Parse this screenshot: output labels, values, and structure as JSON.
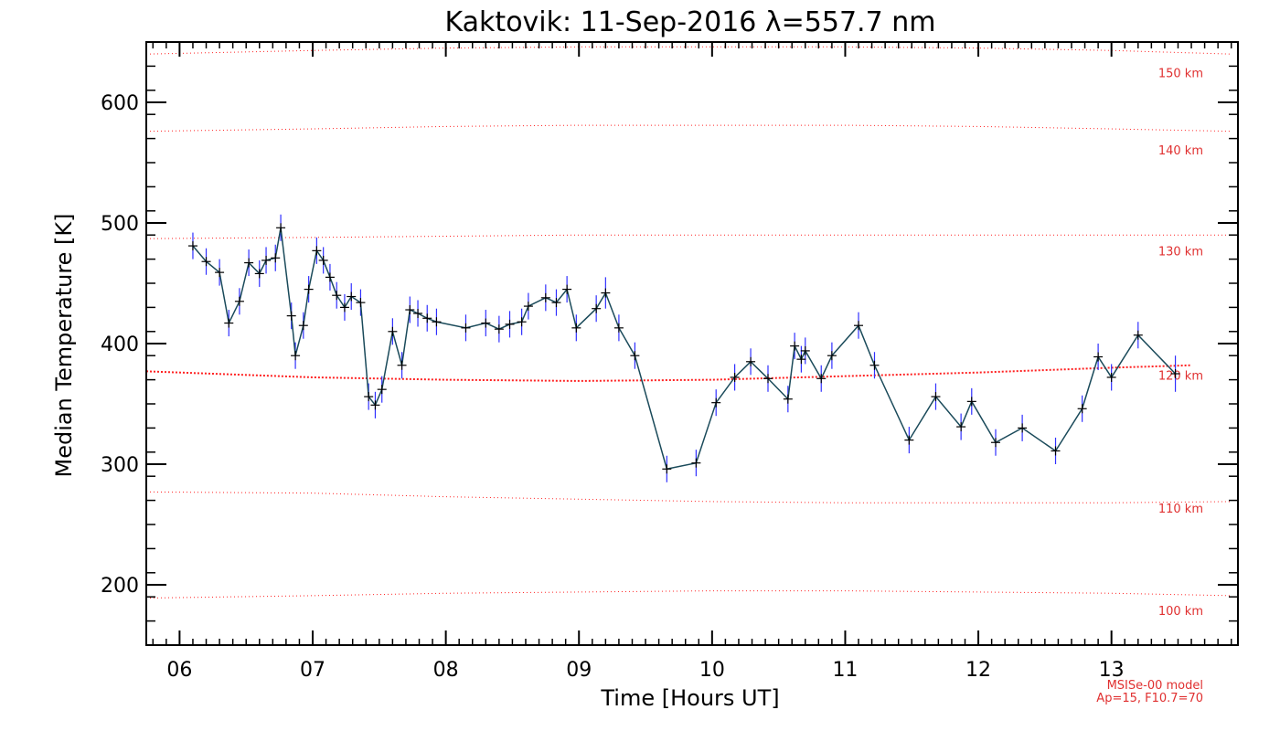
{
  "chart_data": {
    "type": "line",
    "title": "Kaktovik: 11-Sep-2016 λ=557.7 nm",
    "xlabel": "Time [Hours UT]",
    "ylabel": "Median Temperature [K]",
    "xlim": [
      5.75,
      13.95
    ],
    "ylim": [
      150,
      650
    ],
    "x_ticks": [
      6,
      7,
      8,
      9,
      10,
      11,
      12,
      13
    ],
    "x_tick_labels": [
      "06",
      "07",
      "08",
      "09",
      "10",
      "11",
      "12",
      "13"
    ],
    "y_ticks": [
      200,
      300,
      400,
      500,
      600
    ],
    "y_tick_labels": [
      "200",
      "300",
      "400",
      "500",
      "600"
    ],
    "line_color": "#1a4a5a",
    "errorbar_color": "#3030ff",
    "model_color": "#ff2020",
    "series": [
      {
        "x": [
          6.1,
          6.2,
          6.3,
          6.37,
          6.45,
          6.52,
          6.6,
          6.65,
          6.72,
          6.76,
          6.84,
          6.87,
          6.93,
          6.97,
          7.03,
          7.08,
          7.13,
          7.18,
          7.24,
          7.29,
          7.36,
          7.42,
          7.47,
          7.52,
          7.6,
          7.67,
          7.73,
          7.79,
          7.86,
          7.93,
          8.15,
          8.3,
          8.4,
          8.48,
          8.57,
          8.62,
          8.75,
          8.83,
          8.91,
          8.98,
          9.13,
          9.2,
          9.3,
          9.42,
          9.66,
          9.88,
          10.03,
          10.17,
          10.29,
          10.42,
          10.57,
          10.62,
          10.67,
          10.7,
          10.82,
          10.9,
          11.1,
          11.22,
          11.48,
          11.68,
          11.87,
          11.95,
          12.13,
          12.33,
          12.58,
          12.78,
          12.9,
          13.0,
          13.2,
          13.48
        ],
        "y": [
          481,
          468,
          459,
          417,
          435,
          467,
          458,
          469,
          471,
          496,
          423,
          390,
          415,
          445,
          477,
          469,
          455,
          440,
          430,
          439,
          434,
          356,
          349,
          362,
          410,
          382,
          428,
          425,
          421,
          418,
          413,
          417,
          412,
          416,
          418,
          431,
          438,
          434,
          445,
          413,
          429,
          442,
          413,
          390,
          296,
          301,
          351,
          372,
          385,
          371,
          354,
          398,
          387,
          394,
          371,
          390,
          415,
          382,
          320,
          356,
          331,
          352,
          318,
          330,
          311,
          346,
          389,
          372,
          407,
          375
        ],
        "err": [
          11,
          11,
          11,
          11,
          11,
          11,
          11,
          11,
          11,
          11,
          11,
          11,
          11,
          11,
          11,
          11,
          11,
          11,
          11,
          11,
          11,
          11,
          11,
          11,
          11,
          11,
          11,
          11,
          11,
          11,
          11,
          11,
          11,
          11,
          11,
          11,
          11,
          11,
          11,
          11,
          11,
          13,
          11,
          11,
          11,
          11,
          11,
          11,
          11,
          11,
          11,
          11,
          11,
          11,
          11,
          11,
          11,
          11,
          11,
          11,
          11,
          11,
          11,
          11,
          11,
          11,
          11,
          11,
          11,
          15
        ]
      }
    ],
    "model_curves": [
      {
        "label": "100 km",
        "x": [
          5.75,
          7.0,
          8.0,
          9.0,
          10.0,
          11.0,
          12.0,
          13.0,
          13.9
        ],
        "y": [
          189,
          191,
          193,
          194,
          195,
          195,
          194,
          193,
          191
        ],
        "label_y": 175
      },
      {
        "label": "110 km",
        "x": [
          5.75,
          7.0,
          8.0,
          9.0,
          10.0,
          11.0,
          12.0,
          13.0,
          13.9
        ],
        "y": [
          277,
          276,
          273,
          271,
          269,
          268,
          268,
          268,
          269
        ],
        "label_y": 260
      },
      {
        "label": "120 km",
        "x": [
          5.75,
          6.5,
          7.0,
          8.0,
          9.0,
          10.0,
          11.0,
          12.0,
          13.0,
          13.6
        ],
        "y": [
          377,
          374,
          372,
          370,
          369,
          370,
          373,
          376,
          380,
          382
        ],
        "label_y": 370,
        "bold": true
      },
      {
        "label": "130 km",
        "x": [
          5.75,
          7.0,
          8.0,
          9.0,
          10.0,
          11.0,
          12.0,
          13.0,
          13.9
        ],
        "y": [
          487,
          488,
          489,
          490,
          490,
          490,
          490,
          490,
          490
        ],
        "label_y": 473
      },
      {
        "label": "140 km",
        "x": [
          5.75,
          7.0,
          8.0,
          9.0,
          10.0,
          11.0,
          12.0,
          13.0,
          13.9
        ],
        "y": [
          576,
          578,
          580,
          581,
          581,
          581,
          580,
          578,
          576
        ],
        "label_y": 557
      },
      {
        "label": "150 km",
        "x": [
          5.75,
          7.0,
          8.0,
          9.0,
          10.0,
          11.0,
          12.0,
          13.0,
          13.9
        ],
        "y": [
          640,
          643,
          645,
          646,
          646,
          646,
          645,
          643,
          640
        ],
        "label_y": 621
      }
    ],
    "model_note": [
      "MSISe-00 model",
      "Ap=15, F10.7=70"
    ]
  }
}
